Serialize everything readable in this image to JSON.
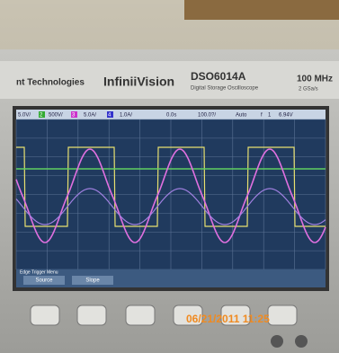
{
  "brand": {
    "company": "nt Technologies",
    "series": "InfiniiVision",
    "model": "DSO6014A",
    "description": "Digital Storage Oscilloscope",
    "bandwidth": "100 MHz",
    "sample_rate": "2 GSa/s"
  },
  "status_bar": [
    "5.0V/",
    "2",
    "500V/",
    "3",
    "5.0A/",
    "4",
    "1.0A/",
    "0.0s",
    "100.0?/",
    "Auto",
    "f",
    "1",
    "6.94V"
  ],
  "menu": {
    "title": "Edge Trigger Menu",
    "softkeys": [
      "Source",
      "Slope"
    ]
  },
  "timestamp": "06/21/2011 11:25"
}
